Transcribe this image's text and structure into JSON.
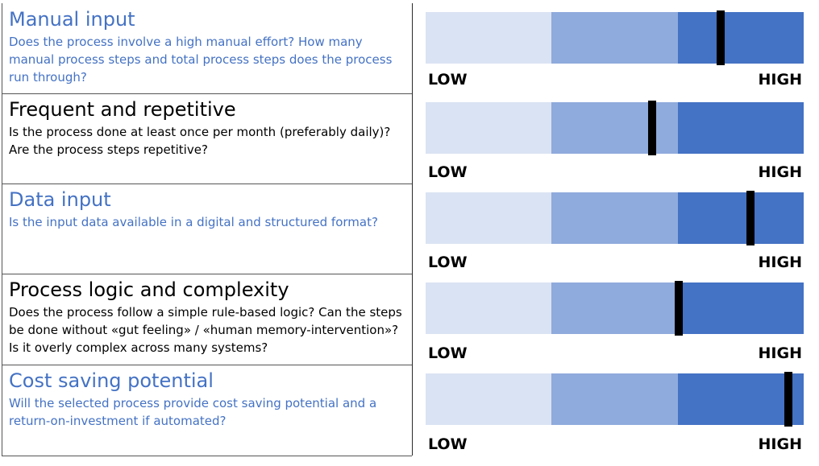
{
  "scale": {
    "low_label": "LOW",
    "high_label": "HIGH"
  },
  "colors": {
    "low": "#dae3f3",
    "mid": "#8faadc",
    "high": "#4472c4",
    "marker": "#000000",
    "accent_text": "#4472c4"
  },
  "criteria": [
    {
      "title": "Manual input",
      "description": "Does the process involve a high manual effort? How many manual process steps and total process steps does the process run through?",
      "text_color": "blue",
      "level": 0.78
    },
    {
      "title": "Frequent and repetitive",
      "description": "Is the process done at least once per month (preferably daily)? Are the process steps repetitive?",
      "text_color": "black",
      "level": 0.6
    },
    {
      "title": "Data input",
      "description": "Is the input data available in a digital and structured format?",
      "text_color": "blue",
      "level": 0.86
    },
    {
      "title": "Process logic and complexity",
      "description": "Does the process follow a simple rule-based logic? Can the steps be done without «gut feeling» / «human memory-intervention»? Is it overly complex across many systems?",
      "text_color": "black",
      "level": 0.67
    },
    {
      "title": "Cost saving potential",
      "description": "Will the selected process provide cost saving potential and a return-on-investment if automated?",
      "text_color": "blue",
      "level": 0.96
    }
  ]
}
